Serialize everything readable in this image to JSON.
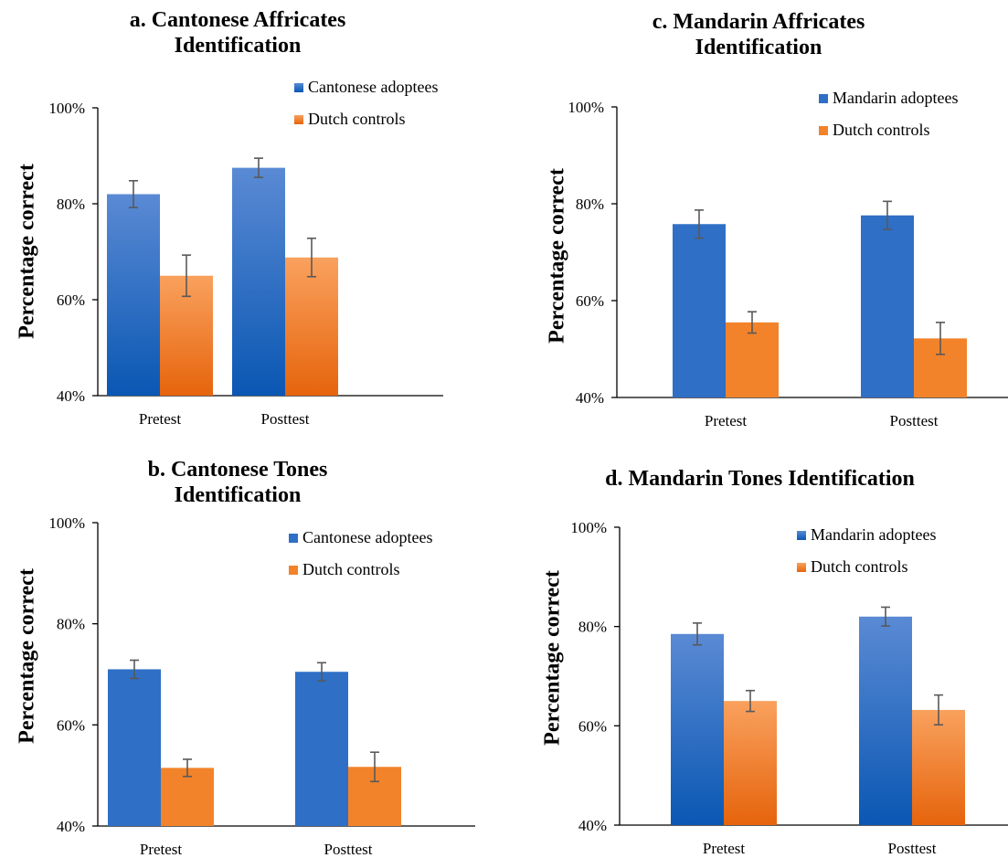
{
  "figure": {
    "colors": {
      "adoptees": "#2F6FC6",
      "controls": "#F2832A",
      "axis": "#000000",
      "error": "#595959"
    },
    "gradient_panels": [
      "a",
      "d"
    ]
  },
  "chart_data": [
    {
      "id": "a",
      "type": "bar",
      "title_line1": "a. Cantonese Affricates",
      "title_line2": "Identification",
      "ylabel": "Percentage correct",
      "categories": [
        "Pretest",
        "Posttest"
      ],
      "ylim": [
        40,
        100
      ],
      "yticks": [
        40,
        60,
        80,
        100
      ],
      "ytick_labels": [
        "40%",
        "60%",
        "80%",
        "100%"
      ],
      "legend_position": "top-right",
      "series": [
        {
          "name": "Cantonese adoptees",
          "values": [
            82,
            87.5
          ],
          "errors": [
            2.8,
            2.0
          ]
        },
        {
          "name": "Dutch controls",
          "values": [
            65,
            68.8
          ],
          "errors": [
            4.3,
            4.0
          ]
        }
      ]
    },
    {
      "id": "c",
      "type": "bar",
      "title_line1": "c. Mandarin Affricates",
      "title_line2": "Identification",
      "ylabel": "Percentage correct",
      "categories": [
        "Pretest",
        "Posttest"
      ],
      "ylim": [
        40,
        100
      ],
      "yticks": [
        40,
        60,
        80,
        100
      ],
      "ytick_labels": [
        "40%",
        "60%",
        "80%",
        "100%"
      ],
      "legend_position": "top-right",
      "series": [
        {
          "name": "Mandarin adoptees",
          "values": [
            75.8,
            77.6
          ],
          "errors": [
            2.9,
            2.9
          ]
        },
        {
          "name": "Dutch controls",
          "values": [
            55.5,
            52.2
          ],
          "errors": [
            2.2,
            3.3
          ]
        }
      ]
    },
    {
      "id": "b",
      "type": "bar",
      "title_line1": "b. Cantonese Tones",
      "title_line2": "Identification",
      "ylabel": "Percentage correct",
      "categories": [
        "Pretest",
        "Posttest"
      ],
      "ylim": [
        40,
        100
      ],
      "yticks": [
        40,
        60,
        80,
        100
      ],
      "ytick_labels": [
        "40%",
        "60%",
        "80%",
        "100%"
      ],
      "legend_position": "top-right",
      "series": [
        {
          "name": "Cantonese adoptees",
          "values": [
            71,
            70.5
          ],
          "errors": [
            1.8,
            1.8
          ]
        },
        {
          "name": "Dutch controls",
          "values": [
            51.5,
            51.7
          ],
          "errors": [
            1.7,
            2.9
          ]
        }
      ]
    },
    {
      "id": "d",
      "type": "bar",
      "title_line1": "d. Mandarin Tones Identification",
      "title_line2": "",
      "ylabel": "Percentage correct",
      "categories": [
        "Pretest",
        "Posttest"
      ],
      "ylim": [
        40,
        100
      ],
      "yticks": [
        40,
        60,
        80,
        100
      ],
      "ytick_labels": [
        "40%",
        "60%",
        "80%",
        "100%"
      ],
      "legend_position": "top-right",
      "series": [
        {
          "name": "Mandarin adoptees",
          "values": [
            78.5,
            82
          ],
          "errors": [
            2.2,
            1.9
          ]
        },
        {
          "name": "Dutch controls",
          "values": [
            65,
            63.2
          ],
          "errors": [
            2.1,
            3.0
          ]
        }
      ]
    }
  ]
}
